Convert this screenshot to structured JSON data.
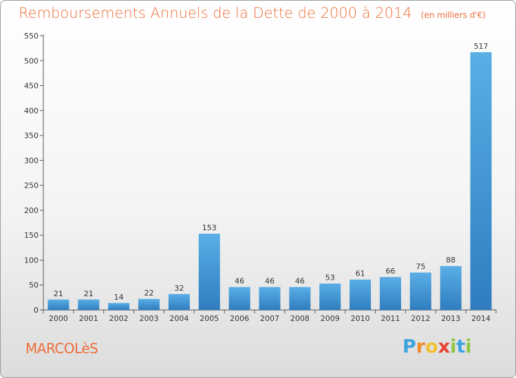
{
  "title": "Remboursements Annuels de la Dette de 2000 à 2014",
  "unit": "(en milliers d'€)",
  "town": "MARCOLèS",
  "logo": {
    "letters": [
      "P",
      "r",
      "o",
      "x",
      "i",
      "t",
      "i"
    ],
    "colors": [
      "#3aa3e0",
      "#f08a24",
      "#f2c230",
      "#e8402e",
      "#8cc63f",
      "#3aa3e0",
      "#8cc63f"
    ]
  },
  "colors": {
    "bar_top": "#5aaee6",
    "bar_bottom": "#2f7dbf",
    "text": "#333333",
    "title": "#ee6e3a"
  },
  "chart_data": {
    "type": "bar",
    "categories": [
      "2000",
      "2001",
      "2002",
      "2003",
      "2004",
      "2005",
      "2006",
      "2007",
      "2008",
      "2009",
      "2010",
      "2011",
      "2012",
      "2013",
      "2014"
    ],
    "values": [
      21,
      21,
      14,
      22,
      32,
      153,
      46,
      46,
      46,
      53,
      61,
      66,
      75,
      88,
      517
    ],
    "title": "Remboursements Annuels de la Dette de 2000 à 2014",
    "xlabel": "",
    "ylabel": "",
    "ylim": [
      0,
      550
    ],
    "yticks": [
      0,
      50,
      100,
      150,
      200,
      250,
      300,
      350,
      400,
      450,
      500,
      550
    ],
    "grid": false,
    "legend": "none"
  }
}
